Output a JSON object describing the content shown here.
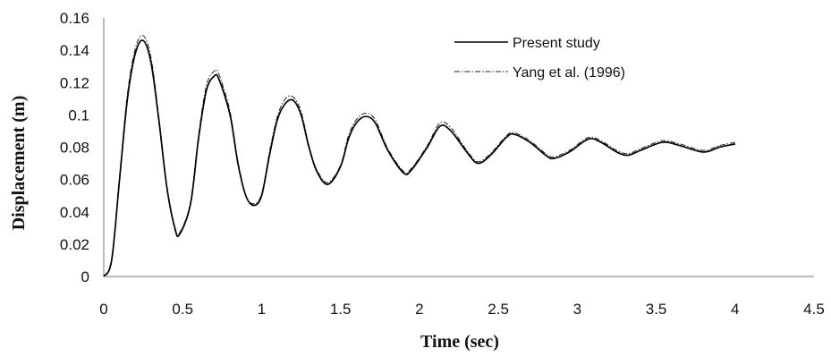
{
  "chart_data": {
    "type": "line",
    "xlabel": "Time (sec)",
    "ylabel": "Displacement (m)",
    "xlim": [
      0,
      4.5
    ],
    "ylim": [
      0,
      0.16
    ],
    "x_ticks": [
      "0",
      "0.5",
      "1",
      "1.5",
      "2",
      "2.5",
      "3",
      "3.5",
      "4",
      "4.5"
    ],
    "y_ticks": [
      "0",
      "0.02",
      "0.04",
      "0.06",
      "0.08",
      "0.1",
      "0.12",
      "0.14",
      "0.16"
    ],
    "grid": false,
    "legend_position": "top-right",
    "series": [
      {
        "name": "Present study",
        "style": "solid",
        "color": "#000000",
        "x": [
          0,
          0.05,
          0.1,
          0.15,
          0.2,
          0.25,
          0.3,
          0.35,
          0.4,
          0.45,
          0.48,
          0.55,
          0.6,
          0.65,
          0.7,
          0.73,
          0.8,
          0.85,
          0.9,
          0.95,
          1.0,
          1.05,
          1.1,
          1.15,
          1.2,
          1.25,
          1.3,
          1.35,
          1.42,
          1.5,
          1.55,
          1.6,
          1.66,
          1.72,
          1.8,
          1.9,
          1.95,
          2.05,
          2.13,
          2.2,
          2.3,
          2.37,
          2.45,
          2.55,
          2.6,
          2.7,
          2.8,
          2.85,
          2.95,
          3.07,
          3.15,
          3.25,
          3.32,
          3.4,
          3.54,
          3.65,
          3.8,
          3.9,
          4.0
        ],
        "y": [
          0,
          0.01,
          0.06,
          0.11,
          0.138,
          0.146,
          0.132,
          0.096,
          0.055,
          0.03,
          0.026,
          0.045,
          0.085,
          0.115,
          0.124,
          0.122,
          0.1,
          0.07,
          0.05,
          0.044,
          0.05,
          0.075,
          0.097,
          0.107,
          0.109,
          0.1,
          0.08,
          0.065,
          0.057,
          0.068,
          0.085,
          0.095,
          0.099,
          0.095,
          0.078,
          0.064,
          0.066,
          0.08,
          0.093,
          0.09,
          0.077,
          0.07,
          0.075,
          0.086,
          0.088,
          0.083,
          0.075,
          0.073,
          0.077,
          0.085,
          0.083,
          0.077,
          0.075,
          0.078,
          0.083,
          0.081,
          0.077,
          0.08,
          0.082
        ]
      },
      {
        "name": "Yang et al. (1996)",
        "style": "dash-dot",
        "color": "#222222",
        "x": [
          0,
          0.05,
          0.1,
          0.15,
          0.2,
          0.25,
          0.3,
          0.35,
          0.4,
          0.45,
          0.48,
          0.55,
          0.6,
          0.65,
          0.7,
          0.73,
          0.8,
          0.85,
          0.9,
          0.95,
          1.0,
          1.05,
          1.1,
          1.15,
          1.2,
          1.25,
          1.3,
          1.35,
          1.42,
          1.5,
          1.55,
          1.6,
          1.66,
          1.72,
          1.8,
          1.9,
          1.95,
          2.05,
          2.13,
          2.2,
          2.3,
          2.37,
          2.45,
          2.55,
          2.6,
          2.7,
          2.8,
          2.85,
          2.95,
          3.07,
          3.15,
          3.25,
          3.32,
          3.4,
          3.54,
          3.65,
          3.8,
          3.9,
          4.0
        ],
        "y": [
          0,
          0.011,
          0.062,
          0.113,
          0.141,
          0.149,
          0.135,
          0.098,
          0.056,
          0.031,
          0.027,
          0.046,
          0.087,
          0.118,
          0.127,
          0.125,
          0.102,
          0.071,
          0.05,
          0.045,
          0.051,
          0.077,
          0.099,
          0.11,
          0.111,
          0.102,
          0.081,
          0.066,
          0.058,
          0.069,
          0.087,
          0.097,
          0.101,
          0.097,
          0.079,
          0.065,
          0.067,
          0.081,
          0.095,
          0.092,
          0.078,
          0.071,
          0.076,
          0.087,
          0.089,
          0.084,
          0.076,
          0.074,
          0.078,
          0.086,
          0.084,
          0.078,
          0.076,
          0.079,
          0.084,
          0.082,
          0.078,
          0.081,
          0.083
        ]
      }
    ]
  }
}
